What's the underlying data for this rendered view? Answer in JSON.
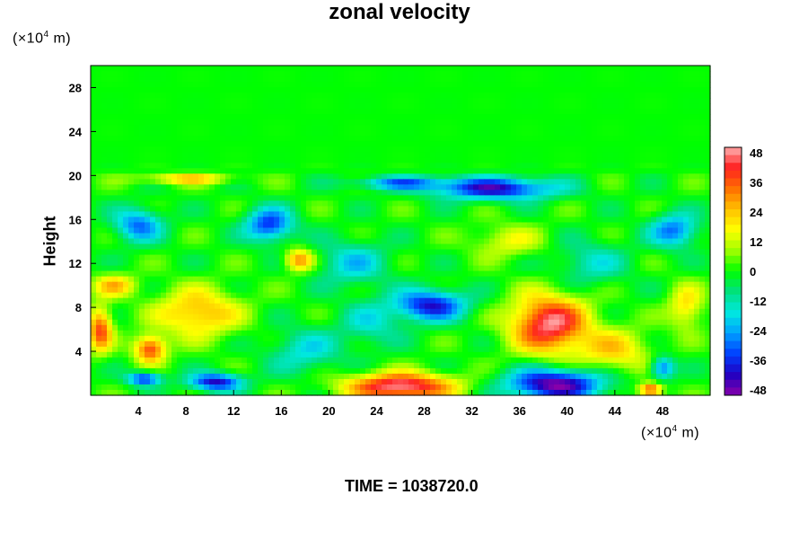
{
  "chart_data": {
    "type": "heatmap",
    "title": "zonal velocity",
    "ylabel": "Height",
    "x_unit": "(×10",
    "x_unit_exp": "4",
    "x_unit_tail": " m)",
    "y_unit": "(×10",
    "y_unit_exp": "4",
    "y_unit_tail": " m)",
    "footer_label": "TIME = ",
    "footer_value": "1038720.0",
    "xlim": [
      0,
      52
    ],
    "ylim": [
      0,
      30
    ],
    "x_ticks": [
      "4",
      "8",
      "12",
      "16",
      "20",
      "24",
      "28",
      "32",
      "36",
      "40",
      "44",
      "48"
    ],
    "y_ticks": [
      "4",
      "8",
      "12",
      "16",
      "20",
      "24",
      "28"
    ],
    "colorbar": {
      "min": -48,
      "max": 48,
      "ticks": [
        "48",
        "36",
        "24",
        "12",
        "0",
        "-12",
        "-24",
        "-36",
        "-48"
      ],
      "colors": [
        "#8800aa",
        "#2000c0",
        "#0040ff",
        "#00a0ff",
        "#00e8e0",
        "#00e080",
        "#00ff00",
        "#a0ff00",
        "#ffff00",
        "#ffc000",
        "#ff7000",
        "#ff2020",
        "#ffb0b0"
      ]
    },
    "features": [
      {
        "x": 26,
        "y": 0.8,
        "v": 48,
        "sx": 4.5,
        "sy": 1.2
      },
      {
        "x": 38.5,
        "y": 6.5,
        "v": 46,
        "sx": 3.2,
        "sy": 2.6
      },
      {
        "x": 39,
        "y": 1.0,
        "v": -48,
        "sx": 4.0,
        "sy": 1.4
      },
      {
        "x": 5,
        "y": 4.2,
        "v": 38,
        "sx": 1.3,
        "sy": 1.2
      },
      {
        "x": 0.8,
        "y": 6.0,
        "v": 36,
        "sx": 1.0,
        "sy": 2.0
      },
      {
        "x": 9,
        "y": 7.5,
        "v": 26,
        "sx": 3.5,
        "sy": 2.2
      },
      {
        "x": 10.5,
        "y": 1.2,
        "v": -40,
        "sx": 2.2,
        "sy": 0.8
      },
      {
        "x": 4.5,
        "y": 1.5,
        "v": -36,
        "sx": 1.4,
        "sy": 0.6
      },
      {
        "x": 17.5,
        "y": 12.3,
        "v": 30,
        "sx": 1.2,
        "sy": 1.0
      },
      {
        "x": 28.5,
        "y": 8.2,
        "v": -38,
        "sx": 3.0,
        "sy": 1.4
      },
      {
        "x": 23.5,
        "y": 6.5,
        "v": -14,
        "sx": 2.5,
        "sy": 2.0
      },
      {
        "x": 15,
        "y": 15.5,
        "v": -34,
        "sx": 2.0,
        "sy": 1.5
      },
      {
        "x": 4,
        "y": 15.5,
        "v": -28,
        "sx": 2.0,
        "sy": 1.5
      },
      {
        "x": 34,
        "y": 18.8,
        "v": -40,
        "sx": 5.0,
        "sy": 1.0
      },
      {
        "x": 26,
        "y": 19.3,
        "v": -26,
        "sx": 4.0,
        "sy": 0.6
      },
      {
        "x": 49,
        "y": 15,
        "v": -28,
        "sx": 2.0,
        "sy": 1.5
      },
      {
        "x": 48,
        "y": 2.5,
        "v": -30,
        "sx": 1.0,
        "sy": 1.0
      },
      {
        "x": 47,
        "y": 0.5,
        "v": 40,
        "sx": 1.0,
        "sy": 0.6
      },
      {
        "x": 2,
        "y": 10,
        "v": 22,
        "sx": 1.8,
        "sy": 1.0
      },
      {
        "x": 8,
        "y": 19.7,
        "v": 22,
        "sx": 4.0,
        "sy": 0.5
      },
      {
        "x": 22,
        "y": 12,
        "v": -18,
        "sx": 3.0,
        "sy": 2.0
      },
      {
        "x": 42,
        "y": 12,
        "v": -14,
        "sx": 3.0,
        "sy": 2.0
      },
      {
        "x": 35,
        "y": 14,
        "v": 14,
        "sx": 3.0,
        "sy": 1.5
      },
      {
        "x": 18,
        "y": 4,
        "v": -16,
        "sx": 3.0,
        "sy": 2.0
      },
      {
        "x": 44,
        "y": 4,
        "v": 20,
        "sx": 3.0,
        "sy": 2.0
      },
      {
        "x": 50,
        "y": 8,
        "v": 20,
        "sx": 1.5,
        "sy": 2.0
      }
    ]
  }
}
